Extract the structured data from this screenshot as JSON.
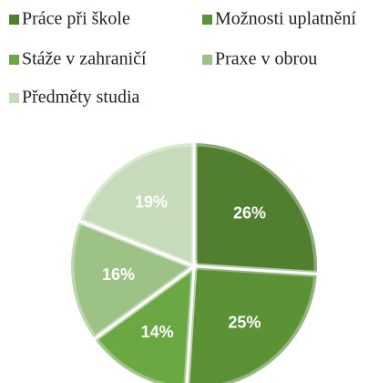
{
  "chart_data": {
    "type": "pie",
    "series": [
      {
        "name": "Práce při škole",
        "color": "#4f7f2f"
      },
      {
        "name": "Možnosti uplatnění",
        "color": "#5b9236"
      },
      {
        "name": "Stáže v zahraničí",
        "color": "#6aa843"
      },
      {
        "name": "Praxe v obrou",
        "color": "#9cc285"
      },
      {
        "name": "Předměty studia",
        "color": "#c6dbb9"
      }
    ],
    "values": [
      26,
      25,
      14,
      16,
      19
    ],
    "value_labels": [
      "26%",
      "25%",
      "14%",
      "16%",
      "19%"
    ]
  }
}
